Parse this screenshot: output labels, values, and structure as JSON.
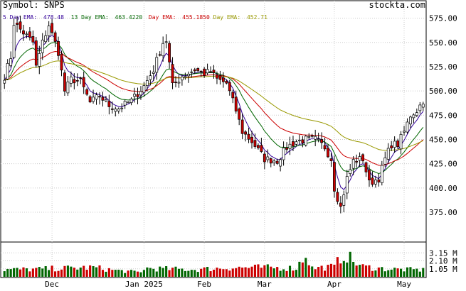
{
  "header": {
    "symbol_label": "Symbol: SNPS",
    "brand": "stockta.com"
  },
  "legend": [
    {
      "label": "5 Day EMA:",
      "value": "478.48",
      "color": "#330099"
    },
    {
      "label": "13 Day EMA:",
      "value": "463.4220",
      "color": "#006600"
    },
    {
      "label": "Day EMA:",
      "value": "455.1850",
      "color": "#cc0000"
    },
    {
      "label": "Day EMA:",
      "value": "452.71",
      "color": "#999900"
    }
  ],
  "colors": {
    "up_candle": "#ffffff",
    "down_candle": "#cc0000",
    "candle_outline": "#000000",
    "grid": "#cccccc",
    "volume_up": "#006600",
    "volume_down": "#cc0000"
  },
  "chart_data": {
    "type": "candlestick",
    "price_axis": {
      "ticks": [
        575,
        550,
        525,
        500,
        475,
        450,
        425,
        400,
        375
      ],
      "tick_labels": [
        "575.00",
        "550.00",
        "525.00",
        "500.00",
        "475.00",
        "450.00",
        "425.00",
        "400.00",
        "375.00"
      ],
      "range": [
        345,
        593
      ]
    },
    "volume_axis": {
      "ticks": [
        3.15,
        2.1,
        1.05
      ],
      "tick_labels": [
        "3.15 M",
        "2.10 M",
        "1.05 M"
      ],
      "range": [
        0,
        4.2
      ],
      "unit": "M"
    },
    "x_axis": {
      "labels": [
        "Dec",
        "Jan 2025",
        "Feb",
        "Mar",
        "Apr",
        "May"
      ],
      "label_bar_index": [
        15,
        44,
        63,
        82,
        104,
        126
      ]
    },
    "bar_count": 133,
    "price_keyframes": [
      [
        0,
        515
      ],
      [
        2,
        535
      ],
      [
        3,
        570
      ],
      [
        6,
        560
      ],
      [
        9,
        550
      ],
      [
        10,
        525
      ],
      [
        12,
        550
      ],
      [
        14,
        568
      ],
      [
        17,
        540
      ],
      [
        19,
        500
      ],
      [
        21,
        512
      ],
      [
        24,
        510
      ],
      [
        27,
        488
      ],
      [
        30,
        495
      ],
      [
        33,
        485
      ],
      [
        36,
        482
      ],
      [
        40,
        490
      ],
      [
        44,
        505
      ],
      [
        47,
        522
      ],
      [
        50,
        550
      ],
      [
        51,
        552
      ],
      [
        53,
        505
      ],
      [
        56,
        515
      ],
      [
        60,
        522
      ],
      [
        63,
        518
      ],
      [
        65,
        520
      ],
      [
        67,
        512
      ],
      [
        70,
        508
      ],
      [
        73,
        480
      ],
      [
        75,
        458
      ],
      [
        78,
        448
      ],
      [
        82,
        430
      ],
      [
        86,
        428
      ],
      [
        89,
        442
      ],
      [
        92,
        448
      ],
      [
        95,
        450
      ],
      [
        98,
        450
      ],
      [
        101,
        442
      ],
      [
        103,
        430
      ],
      [
        104,
        400
      ],
      [
        106,
        380
      ],
      [
        108,
        410
      ],
      [
        110,
        428
      ],
      [
        113,
        430
      ],
      [
        115,
        405
      ],
      [
        118,
        410
      ],
      [
        120,
        430
      ],
      [
        122,
        445
      ],
      [
        124,
        445
      ],
      [
        126,
        458
      ],
      [
        128,
        475
      ],
      [
        130,
        480
      ],
      [
        132,
        490
      ]
    ],
    "volume_keyframes": [
      [
        0,
        1.0
      ],
      [
        10,
        1.05
      ],
      [
        20,
        1.2
      ],
      [
        28,
        1.3
      ],
      [
        35,
        0.9
      ],
      [
        43,
        0.6
      ],
      [
        44,
        1.2
      ],
      [
        50,
        1.1
      ],
      [
        60,
        1.0
      ],
      [
        70,
        1.25
      ],
      [
        80,
        1.3
      ],
      [
        92,
        1.2
      ],
      [
        95,
        3.15
      ],
      [
        97,
        1.2
      ],
      [
        104,
        1.4
      ],
      [
        106,
        2.7
      ],
      [
        108,
        3.0
      ],
      [
        110,
        2.1
      ],
      [
        113,
        1.4
      ],
      [
        120,
        1.1
      ],
      [
        126,
        1.0
      ],
      [
        132,
        0.95
      ]
    ]
  }
}
